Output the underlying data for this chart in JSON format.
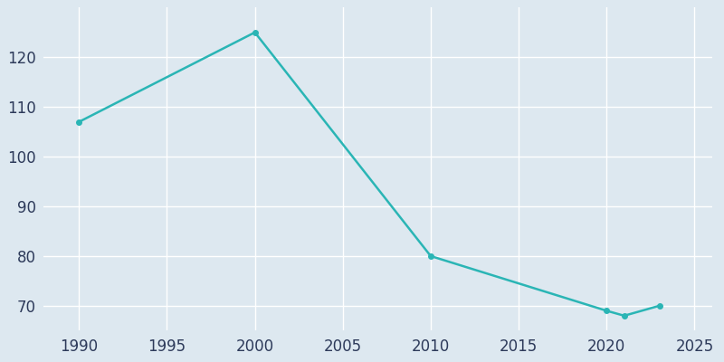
{
  "years": [
    1990,
    2000,
    2010,
    2020,
    2021,
    2023
  ],
  "population": [
    107,
    125,
    80,
    69,
    68,
    70
  ],
  "line_color": "#2ab5b5",
  "marker": "o",
  "marker_size": 4,
  "line_width": 1.8,
  "background_color": "#dde8f0",
  "grid_color": "#ffffff",
  "xlim": [
    1988,
    2026
  ],
  "ylim": [
    65,
    130
  ],
  "xticks": [
    1990,
    1995,
    2000,
    2005,
    2010,
    2015,
    2020,
    2025
  ],
  "yticks": [
    70,
    80,
    90,
    100,
    110,
    120
  ],
  "tick_color": "#2d3a5a",
  "tick_fontsize": 12
}
